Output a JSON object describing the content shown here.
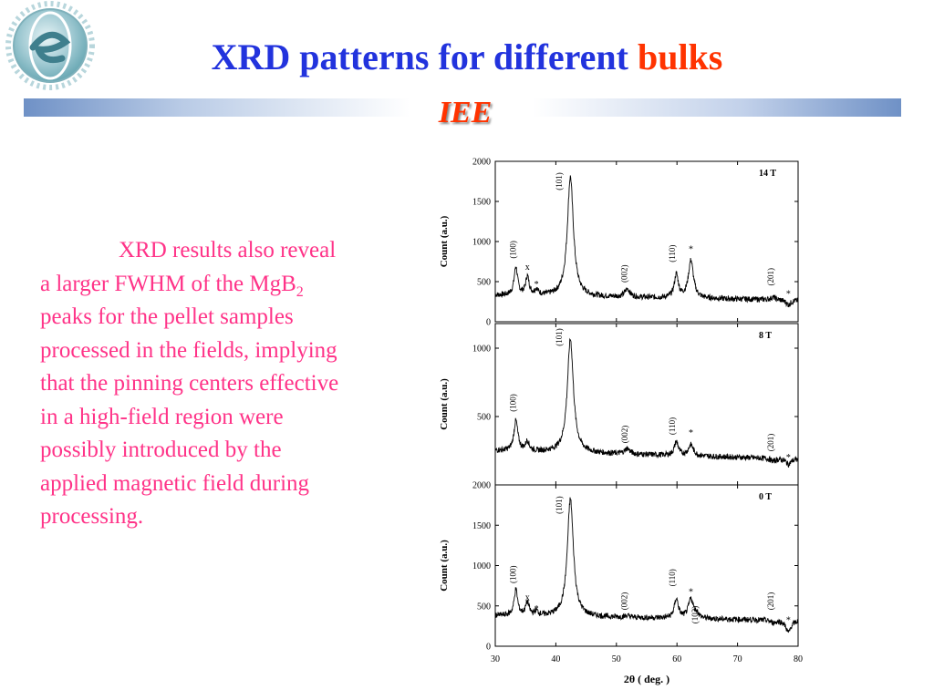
{
  "slide": {
    "title_part1": "XRD patterns  for different",
    "title_part2": "bulks",
    "subtitle": "IEE",
    "body_part1": "XRD results also reveal a larger FWHM of the MgB",
    "body_sub": "2",
    "body_part2": " peaks for the pellet samples processed in the fields, implying that the pinning centers effective in a high-field region were possibly introduced by the applied magnetic field during processing.",
    "colors": {
      "title": "#2233dd",
      "accent": "#ff3300",
      "body_text": "#ff3388",
      "divider": "#6f91c6"
    }
  },
  "chart_data": {
    "type": "line",
    "xlabel": "2θ  ( deg. )",
    "xlim": [
      30,
      80
    ],
    "xticks": [
      30,
      40,
      50,
      60,
      70,
      80
    ],
    "panels": [
      {
        "name": "14 T",
        "ylabel": "Count (a.u.)",
        "ylim": [
          0,
          2000
        ],
        "yticks": [
          0,
          500,
          1000,
          1500,
          2000
        ],
        "background": 330,
        "peaks": [
          {
            "x": 33.4,
            "h": 680,
            "w": 0.35
          },
          {
            "x": 35.3,
            "h": 560,
            "w": 0.35
          },
          {
            "x": 36.8,
            "h": 400,
            "w": 0.35
          },
          {
            "x": 42.4,
            "h": 1820,
            "w": 0.6
          },
          {
            "x": 51.8,
            "h": 430,
            "w": 0.5
          },
          {
            "x": 59.9,
            "h": 620,
            "w": 0.4
          },
          {
            "x": 62.3,
            "h": 800,
            "w": 0.5
          },
          {
            "x": 75.9,
            "h": 360,
            "w": 0.5
          },
          {
            "x": 78.4,
            "h": 270,
            "w": 0.5
          }
        ],
        "labels": [
          {
            "text": "(100)",
            "x": 33.4,
            "y": 900,
            "rotate": true
          },
          {
            "text": "x",
            "x": 35.3,
            "y": 650,
            "rotate": false
          },
          {
            "text": "*",
            "x": 36.8,
            "y": 430,
            "rotate": false
          },
          {
            "text": "(101)",
            "x": 41.0,
            "y": 1750,
            "rotate": true
          },
          {
            "text": "(002)",
            "x": 51.8,
            "y": 600,
            "rotate": true
          },
          {
            "text": "(110)",
            "x": 59.7,
            "y": 850,
            "rotate": true
          },
          {
            "text": "*",
            "x": 62.3,
            "y": 870,
            "rotate": false
          },
          {
            "text": "(201)",
            "x": 75.9,
            "y": 560,
            "rotate": true
          },
          {
            "text": "*",
            "x": 78.4,
            "y": 310,
            "rotate": false
          }
        ]
      },
      {
        "name": "8 T",
        "ylabel": "Count (a.u.)",
        "ylim": [
          0,
          1180
        ],
        "yticks": [
          500,
          1000
        ],
        "background": 250,
        "peaks": [
          {
            "x": 33.4,
            "h": 470,
            "w": 0.4
          },
          {
            "x": 35.3,
            "h": 320,
            "w": 0.35
          },
          {
            "x": 42.4,
            "h": 1080,
            "w": 0.6
          },
          {
            "x": 51.8,
            "h": 290,
            "w": 0.5
          },
          {
            "x": 59.9,
            "h": 350,
            "w": 0.4
          },
          {
            "x": 62.3,
            "h": 330,
            "w": 0.5
          },
          {
            "x": 75.9,
            "h": 230,
            "w": 0.5
          },
          {
            "x": 78.4,
            "h": 210,
            "w": 0.5
          }
        ],
        "labels": [
          {
            "text": "(100)",
            "x": 33.4,
            "y": 600,
            "rotate": true
          },
          {
            "text": "(101)",
            "x": 41.0,
            "y": 1080,
            "rotate": true
          },
          {
            "text": "(002)",
            "x": 51.8,
            "y": 370,
            "rotate": true
          },
          {
            "text": "(110)",
            "x": 59.7,
            "y": 430,
            "rotate": true
          },
          {
            "text": "*",
            "x": 62.3,
            "y": 360,
            "rotate": false
          },
          {
            "text": "(201)",
            "x": 75.9,
            "y": 310,
            "rotate": true
          },
          {
            "text": "*",
            "x": 78.4,
            "y": 180,
            "rotate": false
          }
        ]
      },
      {
        "name": "0 T",
        "ylabel": "Count (a.u.)",
        "ylim": [
          0,
          2000
        ],
        "yticks": [
          0,
          500,
          1000,
          1500,
          2000
        ],
        "background": 380,
        "peaks": [
          {
            "x": 33.4,
            "h": 700,
            "w": 0.35
          },
          {
            "x": 35.3,
            "h": 540,
            "w": 0.35
          },
          {
            "x": 36.8,
            "h": 430,
            "w": 0.35
          },
          {
            "x": 42.4,
            "h": 1840,
            "w": 0.6
          },
          {
            "x": 51.8,
            "h": 400,
            "w": 0.5
          },
          {
            "x": 59.9,
            "h": 620,
            "w": 0.4
          },
          {
            "x": 62.3,
            "h": 620,
            "w": 0.5
          },
          {
            "x": 63.3,
            "h": 430,
            "w": 0.4
          },
          {
            "x": 75.9,
            "h": 350,
            "w": 0.5
          },
          {
            "x": 78.4,
            "h": 230,
            "w": 0.5
          }
        ],
        "labels": [
          {
            "text": "(100)",
            "x": 33.4,
            "y": 890,
            "rotate": true
          },
          {
            "text": "x",
            "x": 35.3,
            "y": 570,
            "rotate": false
          },
          {
            "text": "*",
            "x": 36.8,
            "y": 430,
            "rotate": false
          },
          {
            "text": "(101)",
            "x": 41.0,
            "y": 1750,
            "rotate": true
          },
          {
            "text": "(002)",
            "x": 51.8,
            "y": 560,
            "rotate": true
          },
          {
            "text": "(110)",
            "x": 59.7,
            "y": 850,
            "rotate": true
          },
          {
            "text": "*",
            "x": 62.3,
            "y": 640,
            "rotate": false
          },
          {
            "text": "(102)",
            "x": 63.4,
            "y": 390,
            "rotate": true
          },
          {
            "text": "(201)",
            "x": 75.9,
            "y": 560,
            "rotate": true
          },
          {
            "text": "*",
            "x": 78.4,
            "y": 290,
            "rotate": false
          }
        ]
      }
    ]
  }
}
